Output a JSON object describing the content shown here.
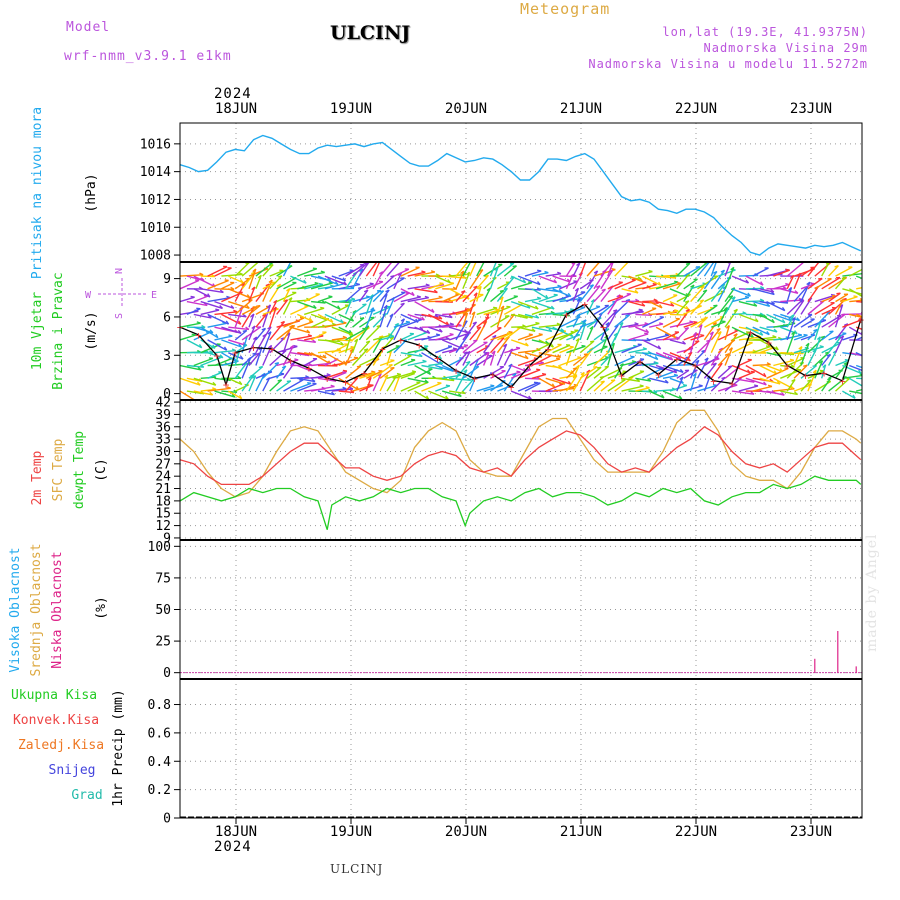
{
  "header": {
    "model_label": "Model",
    "model_name": "wrf-nmm_v3.9.1 e1km",
    "station": "ULCINJ",
    "meteogram": "Meteogram",
    "lonlat": "lon,lat (19.3E, 41.9375N)",
    "elevation": "Nadmorska Visina 29m",
    "model_elevation": "Nadmorska Visina u modelu 11.5272m",
    "year_top": "2024",
    "year_bottom": "2024",
    "footer_station": "ULCINJ",
    "credit": "made by Angel"
  },
  "days": [
    "18JUN",
    "19JUN",
    "20JUN",
    "21JUN",
    "22JUN",
    "23JUN"
  ],
  "colors": {
    "pressure": "#22aaee",
    "temp2m": "#ee4444",
    "sfc": "#ddaa44",
    "dewpt": "#22cc22",
    "purple": "#bb55dd",
    "grid": "#999999"
  },
  "panels": {
    "pressure": {
      "labels": [
        "Pritisak na nivou mora",
        "(hPa)"
      ],
      "yticks": [
        "1008",
        "1010",
        "1012",
        "1014",
        "1016"
      ]
    },
    "wind": {
      "labels": [
        "10m Vjetar",
        "Brzina i Pravac",
        "(m/s)"
      ],
      "yticks": [
        "0",
        "3",
        "6",
        "9"
      ],
      "compass": {
        "n": "N",
        "s": "S",
        "e": "E",
        "w": "W"
      }
    },
    "temp": {
      "labels": [
        "2m Temp",
        "SFC Temp",
        "dewpt Temp",
        "(C)"
      ],
      "yticks": [
        "9",
        "12",
        "15",
        "18",
        "21",
        "24",
        "27",
        "30",
        "33",
        "36",
        "39",
        "42"
      ]
    },
    "cloud": {
      "labels": [
        "Visoka Oblacnost",
        "Srednja Oblacnost",
        "Niska Oblacnost",
        "(%)"
      ],
      "yticks": [
        "0",
        "25",
        "50",
        "75",
        "100"
      ]
    },
    "precip": {
      "labels": [
        "Ukupna Kisa",
        "Konvek.Kisa",
        "Zaledj.Kisa",
        "Snijeg",
        "Grad",
        "1hr Precip (mm)"
      ],
      "yticks": [
        "0",
        "0.2",
        "0.4",
        "0.6",
        "0.8"
      ]
    }
  },
  "chart_data": [
    {
      "type": "line",
      "name": "pressure",
      "x_unit": "hours from 17JUN 12UTC",
      "ylim": [
        1007.5,
        1017.5
      ],
      "series": [
        {
          "x": [
            0,
            2,
            4,
            6,
            8,
            10,
            12,
            14,
            16,
            18,
            20,
            22,
            24,
            26,
            28,
            30,
            32,
            34,
            36,
            38,
            40,
            42,
            44,
            46,
            48,
            50,
            52,
            54,
            56,
            58,
            60,
            62,
            64,
            66,
            68,
            70,
            72,
            74,
            76,
            78,
            80,
            82,
            84,
            86,
            88,
            90,
            92,
            94,
            96,
            98,
            100,
            102,
            104,
            106,
            108,
            110,
            112,
            114,
            116,
            118,
            120,
            122,
            124,
            126,
            128,
            130,
            132,
            134,
            136,
            138,
            140,
            142,
            144,
            146,
            148
          ],
          "values": [
            1014.5,
            1014.3,
            1014.0,
            1014.1,
            1014.7,
            1015.4,
            1015.6,
            1015.5,
            1016.3,
            1016.6,
            1016.4,
            1016.0,
            1015.6,
            1015.3,
            1015.3,
            1015.7,
            1015.9,
            1015.8,
            1015.9,
            1016.0,
            1015.8,
            1016.0,
            1016.1,
            1015.6,
            1015.1,
            1014.6,
            1014.4,
            1014.4,
            1014.8,
            1015.3,
            1015.0,
            1014.7,
            1014.8,
            1015.0,
            1014.9,
            1014.5,
            1014.0,
            1013.4,
            1013.4,
            1014.0,
            1014.9,
            1014.9,
            1014.8,
            1015.1,
            1015.3,
            1014.9,
            1014.0,
            1013.1,
            1012.2,
            1011.9,
            1012.0,
            1011.8,
            1011.3,
            1011.2,
            1011.0,
            1011.3,
            1011.3,
            1011.1,
            1010.7,
            1010.0,
            1009.4,
            1008.9,
            1008.2,
            1008.0,
            1008.5,
            1008.8,
            1008.7,
            1008.6,
            1008.5,
            1008.7,
            1008.6,
            1008.7,
            1008.9,
            1008.6,
            1008.3
          ]
        }
      ]
    },
    {
      "type": "line",
      "name": "wind",
      "ylim": [
        -0.5,
        10.3
      ],
      "series": [
        {
          "name": "speed",
          "x": [
            0,
            4,
            8,
            10,
            12,
            16,
            20,
            24,
            28,
            32,
            36,
            40,
            44,
            48,
            52,
            56,
            60,
            64,
            68,
            72,
            76,
            80,
            84,
            88,
            92,
            96,
            100,
            104,
            108,
            112,
            116,
            120,
            124,
            128,
            132,
            136,
            140,
            144,
            148
          ],
          "values": [
            5.2,
            4.6,
            3.0,
            0.7,
            3.2,
            3.6,
            3.5,
            2.6,
            2.0,
            1.2,
            0.9,
            1.6,
            3.5,
            4.2,
            3.8,
            2.8,
            1.8,
            1.2,
            1.5,
            0.5,
            2.2,
            3.5,
            6.2,
            7.0,
            5.2,
            1.4,
            2.5,
            1.5,
            2.7,
            2.2,
            1.0,
            0.8,
            4.8,
            4.0,
            2.2,
            1.4,
            1.6,
            1.0,
            5.8
          ]
        }
      ]
    },
    {
      "type": "line",
      "name": "temperature",
      "ylim": [
        8.5,
        42.5
      ],
      "series": [
        {
          "name": "2m",
          "x": [
            0,
            3,
            6,
            9,
            12,
            15,
            18,
            21,
            24,
            27,
            30,
            33,
            36,
            39,
            42,
            45,
            48,
            51,
            54,
            57,
            60,
            63,
            66,
            69,
            72,
            75,
            78,
            81,
            84,
            87,
            90,
            93,
            96,
            99,
            102,
            105,
            108,
            111,
            114,
            117,
            120,
            123,
            126,
            129,
            132,
            135,
            138,
            141,
            144,
            147,
            148
          ],
          "values": [
            28,
            27,
            24,
            22,
            22,
            22,
            24,
            27,
            30,
            32,
            32,
            29,
            26,
            26,
            24,
            23,
            24,
            27,
            29,
            30,
            29,
            26,
            25,
            26,
            24,
            28,
            31,
            33,
            35,
            34,
            31,
            27,
            25,
            26,
            25,
            28,
            31,
            33,
            36,
            34,
            30,
            27,
            26,
            27,
            25,
            28,
            31,
            32,
            32,
            29,
            28
          ]
        },
        {
          "name": "sfc",
          "x": [
            0,
            3,
            6,
            9,
            12,
            15,
            18,
            21,
            24,
            27,
            30,
            33,
            36,
            39,
            42,
            45,
            48,
            51,
            54,
            57,
            60,
            63,
            66,
            69,
            72,
            75,
            78,
            81,
            84,
            87,
            90,
            93,
            96,
            99,
            102,
            105,
            108,
            111,
            114,
            117,
            120,
            123,
            126,
            129,
            132,
            135,
            138,
            141,
            144,
            147,
            148
          ],
          "values": [
            33,
            30,
            25,
            21,
            19,
            20,
            24,
            30,
            35,
            36,
            35,
            30,
            25,
            23,
            21,
            20,
            23,
            31,
            35,
            37,
            35,
            28,
            25,
            24,
            24,
            30,
            36,
            38,
            38,
            33,
            28,
            25,
            25,
            25,
            25,
            30,
            37,
            40,
            40,
            35,
            27,
            24,
            23,
            23,
            21,
            25,
            31,
            35,
            35,
            33,
            32
          ]
        },
        {
          "name": "dewpt",
          "x": [
            0,
            3,
            6,
            9,
            12,
            15,
            18,
            21,
            24,
            27,
            30,
            32,
            33,
            36,
            39,
            42,
            45,
            48,
            51,
            54,
            57,
            60,
            62,
            63,
            66,
            69,
            72,
            75,
            78,
            81,
            84,
            87,
            90,
            93,
            96,
            99,
            102,
            105,
            108,
            111,
            114,
            117,
            120,
            123,
            126,
            129,
            132,
            135,
            138,
            141,
            144,
            147,
            148
          ],
          "values": [
            18,
            20,
            19,
            18,
            19,
            21,
            20,
            21,
            21,
            19,
            18,
            11,
            17,
            19,
            18,
            19,
            21,
            20,
            21,
            21,
            19,
            18,
            12,
            15,
            18,
            19,
            18,
            20,
            21,
            19,
            20,
            20,
            19,
            17,
            18,
            20,
            19,
            21,
            20,
            21,
            18,
            17,
            19,
            20,
            20,
            22,
            21,
            22,
            24,
            23,
            23,
            23,
            22
          ]
        }
      ]
    },
    {
      "type": "bar",
      "name": "cloud",
      "ylim": [
        -5,
        105
      ],
      "series": [
        {
          "name": "low",
          "x": [
            138,
            143,
            147
          ],
          "values": [
            11,
            33,
            5
          ]
        }
      ]
    },
    {
      "type": "bar",
      "name": "precip",
      "ylim": [
        0,
        0.98
      ],
      "series": []
    }
  ]
}
